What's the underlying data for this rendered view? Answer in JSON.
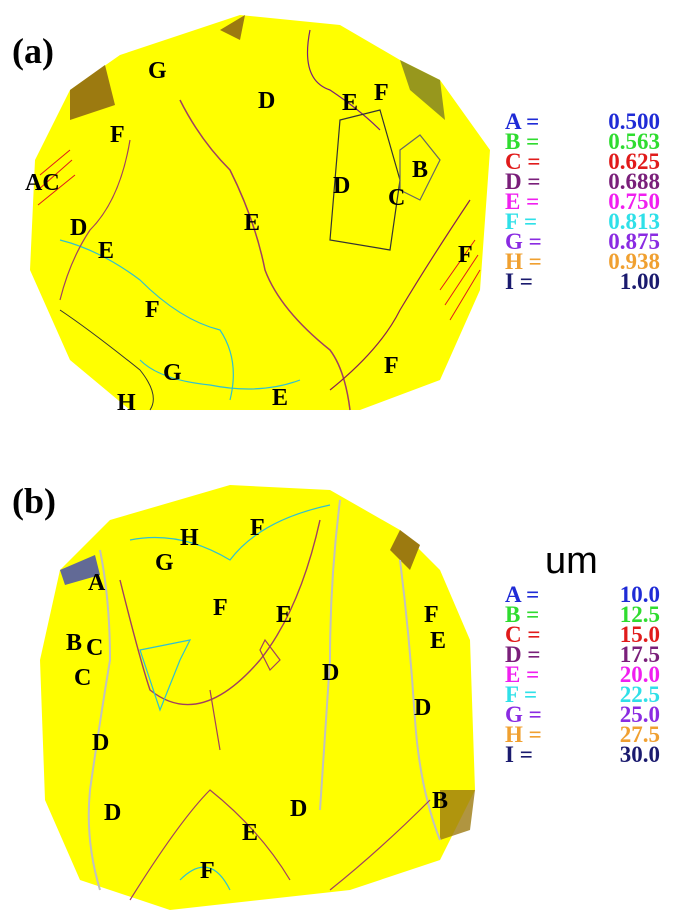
{
  "panels": [
    {
      "label": "(a)",
      "legend": [
        {
          "key": "A =",
          "value": "0.500",
          "color": "#1f2bd6"
        },
        {
          "key": "B =",
          "value": "0.563",
          "color": "#2fdc2f"
        },
        {
          "key": "C =",
          "value": "0.625",
          "color": "#e01b1b"
        },
        {
          "key": "D =",
          "value": "0.688",
          "color": "#7a1f7a"
        },
        {
          "key": "E =",
          "value": "0.750",
          "color": "#f01ff0"
        },
        {
          "key": "F =",
          "value": "0.813",
          "color": "#2fe0e8"
        },
        {
          "key": "G =",
          "value": "0.875",
          "color": "#8a2be2"
        },
        {
          "key": "H =",
          "value": "0.938",
          "color": "#f0a030"
        },
        {
          "key": "I =",
          "value": "1.00",
          "color": "#1a1a6e"
        }
      ],
      "contour_labels": [
        "G",
        "D",
        "E",
        "F",
        "F",
        "AC",
        "D",
        "B",
        "C",
        "E",
        "D",
        "E",
        "F",
        "F",
        "G",
        "H",
        "E",
        "F"
      ]
    },
    {
      "label": "(b)",
      "unit": "um",
      "legend": [
        {
          "key": "A =",
          "value": "10.0",
          "color": "#1f2bd6"
        },
        {
          "key": "B =",
          "value": "12.5",
          "color": "#2fdc2f"
        },
        {
          "key": "C =",
          "value": "15.0",
          "color": "#e01b1b"
        },
        {
          "key": "D =",
          "value": "17.5",
          "color": "#7a1f7a"
        },
        {
          "key": "E =",
          "value": "20.0",
          "color": "#f01ff0"
        },
        {
          "key": "F =",
          "value": "22.5",
          "color": "#2fe0e8"
        },
        {
          "key": "G =",
          "value": "25.0",
          "color": "#8a2be2"
        },
        {
          "key": "H =",
          "value": "27.5",
          "color": "#f0a030"
        },
        {
          "key": "I =",
          "value": "30.0",
          "color": "#1a1a6e"
        }
      ],
      "contour_labels": [
        "H",
        "F",
        "G",
        "A",
        "F",
        "E",
        "F",
        "B",
        "C",
        "E",
        "D",
        "C",
        "D",
        "D",
        "D",
        "D",
        "E",
        "B",
        "F"
      ]
    }
  ]
}
